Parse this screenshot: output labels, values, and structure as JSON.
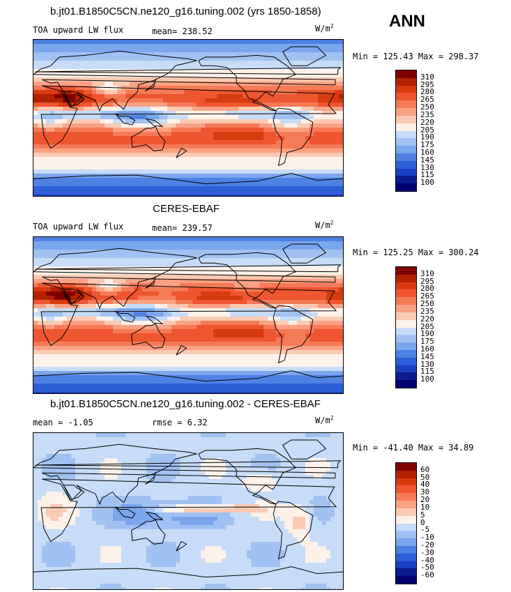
{
  "season": "ANN",
  "units_main": "W/m",
  "units_sup": "2",
  "panels": [
    {
      "title": "b.jt01.B1850C5CN.ne120_g16.tuning.002 (yrs 1850-1858)",
      "variable": "TOA upward LW flux",
      "stat1": "mean= 238.52",
      "stat2": "",
      "minmax": "Min = 125.43 Max = 298.37",
      "cbar_levels": [
        "310",
        "295",
        "280",
        "265",
        "250",
        "235",
        "220",
        "205",
        "190",
        "175",
        "160",
        "145",
        "130",
        "115",
        "100"
      ]
    },
    {
      "title": "CERES-EBAF",
      "variable": "TOA upward LW flux",
      "stat1": "mean= 239.57",
      "stat2": "",
      "minmax": "Min = 125.25 Max = 300.24",
      "cbar_levels": [
        "310",
        "295",
        "280",
        "265",
        "250",
        "235",
        "220",
        "205",
        "190",
        "175",
        "160",
        "145",
        "130",
        "115",
        "100"
      ]
    },
    {
      "title": "b.jt01.B1850C5CN.ne120_g16.tuning.002 - CERES-EBAF",
      "variable": "mean =   -1.05",
      "stat1": "rmse =    6.32",
      "stat2": "",
      "minmax": "Min = -41.40 Max =  34.89",
      "cbar_levels": [
        "60",
        "50",
        "40",
        "30",
        "20",
        "10",
        "5",
        "0",
        "-5",
        "-10",
        "-20",
        "-30",
        "-40",
        "-50",
        "-60"
      ]
    }
  ],
  "chart_data": [
    {
      "type": "heatmap",
      "title": "b.jt01.B1850C5CN.ne120_g16.tuning.002 (yrs 1850-1858)",
      "subtitle": "TOA upward LW flux",
      "units": "W/m2",
      "mean": 238.52,
      "min": 125.43,
      "max": 298.37,
      "colorbar_levels": [
        100,
        115,
        130,
        145,
        160,
        175,
        190,
        205,
        220,
        235,
        250,
        265,
        280,
        295,
        310
      ],
      "legend": "right"
    },
    {
      "type": "heatmap",
      "title": "CERES-EBAF",
      "subtitle": "TOA upward LW flux",
      "units": "W/m2",
      "mean": 239.57,
      "min": 125.25,
      "max": 300.24,
      "colorbar_levels": [
        100,
        115,
        130,
        145,
        160,
        175,
        190,
        205,
        220,
        235,
        250,
        265,
        280,
        295,
        310
      ],
      "legend": "right"
    },
    {
      "type": "heatmap",
      "title": "b.jt01.B1850C5CN.ne120_g16.tuning.002 - CERES-EBAF",
      "units": "W/m2",
      "mean": -1.05,
      "rmse": 6.32,
      "min": -41.4,
      "max": 34.89,
      "colorbar_levels": [
        -60,
        -50,
        -40,
        -30,
        -20,
        -10,
        -5,
        0,
        5,
        10,
        20,
        30,
        40,
        50,
        60
      ],
      "legend": "right"
    }
  ],
  "colors": {
    "scale": [
      "#800000",
      "#b22200",
      "#d83a10",
      "#ee5530",
      "#f57a58",
      "#f9a283",
      "#fbcab2",
      "#fdf2ea",
      "#c6dcf8",
      "#a0c2f2",
      "#7aa6ec",
      "#4f80e4",
      "#2e5ed8",
      "#1a3ec0",
      "#0a1c90",
      "#000070"
    ]
  }
}
